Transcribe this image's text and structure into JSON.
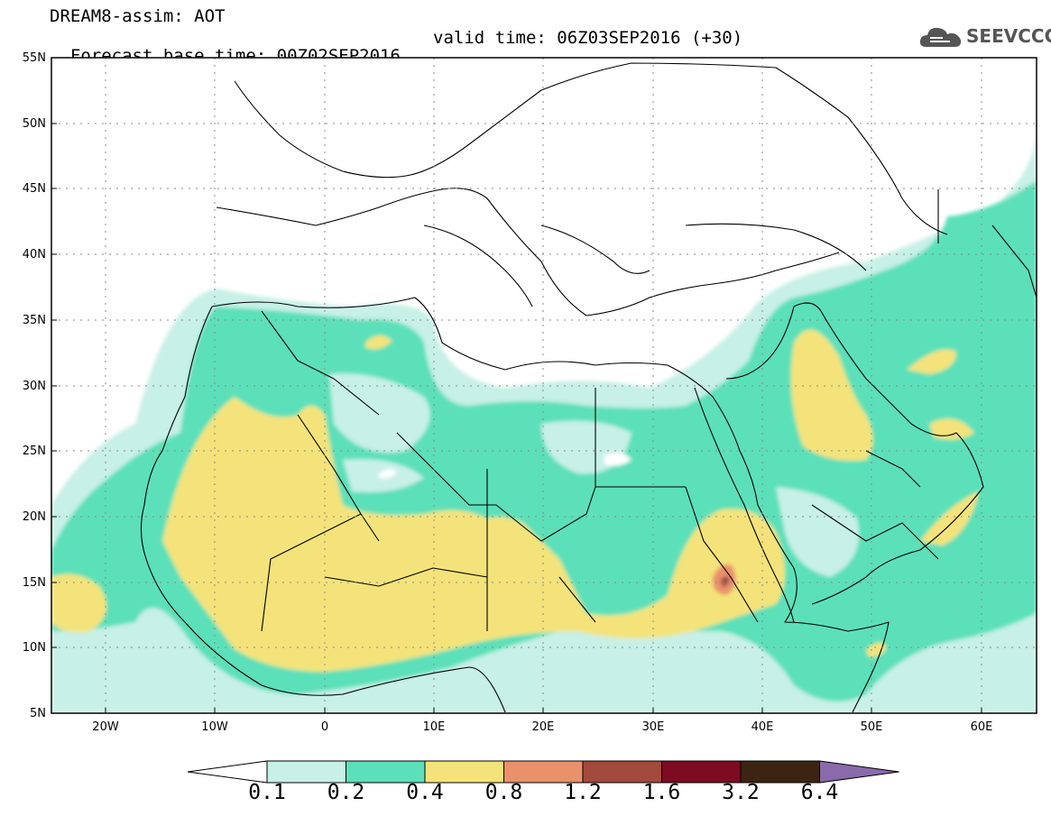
{
  "header": {
    "title_line1": "DREAM8-assim: AOT",
    "title_base": "Forecast base time: 00Z02SEP2016",
    "title_valid": "valid time: 06Z03SEP2016 (+30)",
    "logo_text": "SEEVCCC",
    "logo_icon": "cloud-icon"
  },
  "map": {
    "lat_labels": [
      "55N",
      "50N",
      "45N",
      "40N",
      "35N",
      "30N",
      "25N",
      "20N",
      "15N",
      "10N",
      "5N"
    ],
    "lon_labels": [
      "20W",
      "10W",
      "0",
      "10E",
      "20E",
      "30E",
      "40E",
      "50E",
      "60E"
    ],
    "lat_range": [
      5,
      55
    ],
    "lon_range": [
      -25,
      65
    ],
    "gridlines": "dotted",
    "variable": "aerosol optical thickness"
  },
  "colorbar": {
    "levels": [
      "0.1",
      "0.2",
      "0.4",
      "0.8",
      "1.2",
      "1.6",
      "3.2",
      "6.4"
    ],
    "colors": [
      "#ffffff",
      "#c7f0e6",
      "#5ce0b9",
      "#f4e37a",
      "#e9916a",
      "#a24a3c",
      "#7d0b22",
      "#3b2512",
      "#8a6aab"
    ]
  }
}
